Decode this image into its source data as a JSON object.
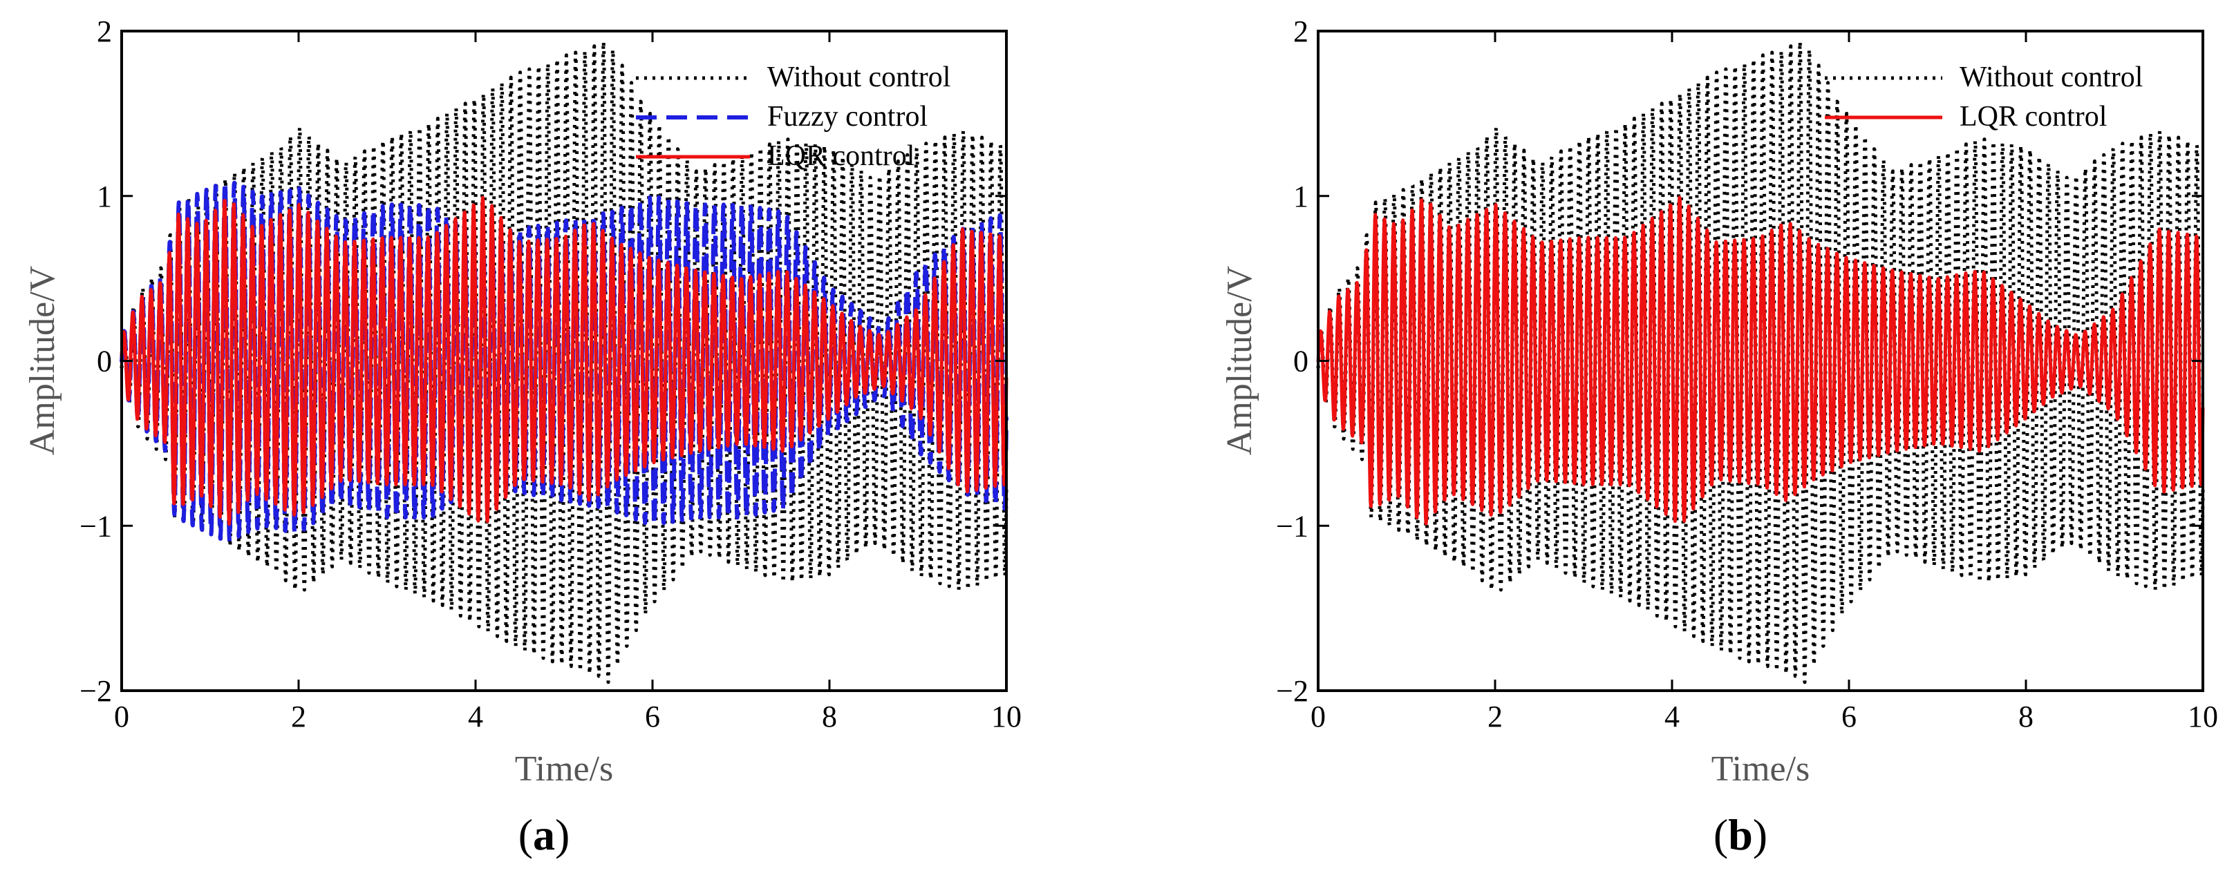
{
  "chart_data": [
    {
      "type": "line",
      "panel_label": "(a)",
      "panel_letter": "a",
      "xlabel": "Time/s",
      "ylabel": "Amplitude/V",
      "xlim": [
        0,
        10
      ],
      "ylim": [
        -2,
        2
      ],
      "xticks": [
        0,
        2,
        4,
        6,
        8,
        10
      ],
      "yticks": [
        -2,
        -1,
        0,
        1,
        2
      ],
      "xtick_labels": [
        "0",
        "2",
        "4",
        "6",
        "8",
        "10"
      ],
      "ytick_labels": [
        "−2",
        "−1",
        "0",
        "1",
        "2"
      ],
      "legend_position": "top-right",
      "series": [
        {
          "name": "Without control",
          "color": "#000000",
          "style": "dotted",
          "frequency_hz": 9.6,
          "envelope": [
            [
              0,
              0.15
            ],
            [
              0.2,
              0.42
            ],
            [
              0.5,
              0.6
            ],
            [
              0.6,
              0.95
            ],
            [
              1.0,
              1.05
            ],
            [
              1.3,
              1.15
            ],
            [
              1.8,
              1.3
            ],
            [
              2.0,
              1.42
            ],
            [
              2.5,
              1.2
            ],
            [
              3.0,
              1.35
            ],
            [
              3.5,
              1.45
            ],
            [
              4.0,
              1.6
            ],
            [
              4.5,
              1.75
            ],
            [
              5.0,
              1.85
            ],
            [
              5.3,
              1.9
            ],
            [
              5.5,
              1.95
            ],
            [
              5.9,
              1.55
            ],
            [
              6.5,
              1.15
            ],
            [
              7.0,
              1.25
            ],
            [
              7.5,
              1.35
            ],
            [
              8.0,
              1.3
            ],
            [
              8.5,
              1.1
            ],
            [
              9.0,
              1.3
            ],
            [
              9.5,
              1.4
            ],
            [
              10.0,
              1.3
            ]
          ],
          "summary": {
            "peak_max": 1.95,
            "peak_min": -1.95,
            "peak_time": 5.5
          }
        },
        {
          "name": "Fuzzy control",
          "color": "#1f1fe0",
          "style": "dashed",
          "frequency_hz": 9.6,
          "envelope": [
            [
              0,
              0.15
            ],
            [
              0.2,
              0.38
            ],
            [
              0.5,
              0.55
            ],
            [
              0.6,
              0.95
            ],
            [
              1.2,
              1.1
            ],
            [
              1.6,
              1.0
            ],
            [
              2.0,
              1.05
            ],
            [
              2.5,
              0.85
            ],
            [
              3.0,
              0.95
            ],
            [
              3.5,
              0.95
            ],
            [
              4.0,
              0.75
            ],
            [
              4.5,
              0.8
            ],
            [
              5.0,
              0.85
            ],
            [
              5.5,
              0.9
            ],
            [
              6.0,
              1.0
            ],
            [
              6.5,
              0.95
            ],
            [
              7.0,
              0.95
            ],
            [
              7.5,
              0.9
            ],
            [
              8.0,
              0.45
            ],
            [
              8.6,
              0.2
            ],
            [
              9.0,
              0.55
            ],
            [
              9.5,
              0.8
            ],
            [
              10.0,
              0.9
            ]
          ],
          "summary": {
            "peak_max": 1.1,
            "peak_min": -1.15
          }
        },
        {
          "name": "LQR control",
          "color": "#ee1111",
          "style": "solid",
          "frequency_hz": 9.6,
          "envelope": [
            [
              0,
              0.15
            ],
            [
              0.2,
              0.38
            ],
            [
              0.5,
              0.5
            ],
            [
              0.6,
              0.9
            ],
            [
              0.9,
              0.82
            ],
            [
              1.2,
              1.0
            ],
            [
              1.5,
              0.8
            ],
            [
              2.0,
              0.95
            ],
            [
              2.5,
              0.72
            ],
            [
              3.0,
              0.75
            ],
            [
              3.5,
              0.75
            ],
            [
              4.1,
              1.0
            ],
            [
              4.5,
              0.72
            ],
            [
              5.0,
              0.75
            ],
            [
              5.3,
              0.85
            ],
            [
              5.6,
              0.72
            ],
            [
              6.0,
              0.62
            ],
            [
              6.5,
              0.55
            ],
            [
              7.0,
              0.5
            ],
            [
              7.5,
              0.55
            ],
            [
              8.0,
              0.35
            ],
            [
              8.3,
              0.22
            ],
            [
              8.6,
              0.15
            ],
            [
              9.0,
              0.32
            ],
            [
              9.5,
              0.8
            ],
            [
              10.0,
              0.75
            ]
          ],
          "summary": {
            "peak_max": 1.0,
            "peak_min": -1.0
          }
        }
      ]
    },
    {
      "type": "line",
      "panel_label": "(b)",
      "panel_letter": "b",
      "xlabel": "Time/s",
      "ylabel": "Amplitude/V",
      "xlim": [
        0,
        10
      ],
      "ylim": [
        -2,
        2
      ],
      "xticks": [
        0,
        2,
        4,
        6,
        8,
        10
      ],
      "yticks": [
        -2,
        -1,
        0,
        1,
        2
      ],
      "xtick_labels": [
        "0",
        "2",
        "4",
        "6",
        "8",
        "10"
      ],
      "ytick_labels": [
        "−2",
        "−1",
        "0",
        "1",
        "2"
      ],
      "legend_position": "top-right",
      "series": [
        {
          "name": "Without control",
          "color": "#000000",
          "style": "dotted",
          "frequency_hz": 9.6,
          "envelope": [
            [
              0,
              0.15
            ],
            [
              0.2,
              0.42
            ],
            [
              0.5,
              0.6
            ],
            [
              0.6,
              0.95
            ],
            [
              1.0,
              1.05
            ],
            [
              1.3,
              1.15
            ],
            [
              1.8,
              1.3
            ],
            [
              2.0,
              1.42
            ],
            [
              2.5,
              1.2
            ],
            [
              3.0,
              1.35
            ],
            [
              3.5,
              1.45
            ],
            [
              4.0,
              1.6
            ],
            [
              4.5,
              1.75
            ],
            [
              5.0,
              1.85
            ],
            [
              5.3,
              1.9
            ],
            [
              5.5,
              1.95
            ],
            [
              5.9,
              1.55
            ],
            [
              6.5,
              1.15
            ],
            [
              7.0,
              1.25
            ],
            [
              7.5,
              1.35
            ],
            [
              8.0,
              1.3
            ],
            [
              8.5,
              1.1
            ],
            [
              9.0,
              1.3
            ],
            [
              9.5,
              1.4
            ],
            [
              10.0,
              1.3
            ]
          ],
          "summary": {
            "peak_max": 1.95,
            "peak_min": -1.95,
            "peak_time": 5.5
          }
        },
        {
          "name": "LQR control",
          "color": "#ee1111",
          "style": "solid",
          "frequency_hz": 9.6,
          "envelope": [
            [
              0,
              0.15
            ],
            [
              0.2,
              0.38
            ],
            [
              0.5,
              0.5
            ],
            [
              0.6,
              0.9
            ],
            [
              0.9,
              0.82
            ],
            [
              1.2,
              1.0
            ],
            [
              1.5,
              0.8
            ],
            [
              2.0,
              0.95
            ],
            [
              2.5,
              0.72
            ],
            [
              3.0,
              0.75
            ],
            [
              3.5,
              0.75
            ],
            [
              4.1,
              1.0
            ],
            [
              4.5,
              0.72
            ],
            [
              5.0,
              0.75
            ],
            [
              5.3,
              0.85
            ],
            [
              5.6,
              0.72
            ],
            [
              6.0,
              0.62
            ],
            [
              6.5,
              0.55
            ],
            [
              7.0,
              0.5
            ],
            [
              7.5,
              0.55
            ],
            [
              8.0,
              0.35
            ],
            [
              8.3,
              0.22
            ],
            [
              8.6,
              0.15
            ],
            [
              9.0,
              0.32
            ],
            [
              9.5,
              0.8
            ],
            [
              10.0,
              0.75
            ]
          ],
          "summary": {
            "peak_max": 1.0,
            "peak_min": -1.0
          }
        }
      ]
    }
  ]
}
